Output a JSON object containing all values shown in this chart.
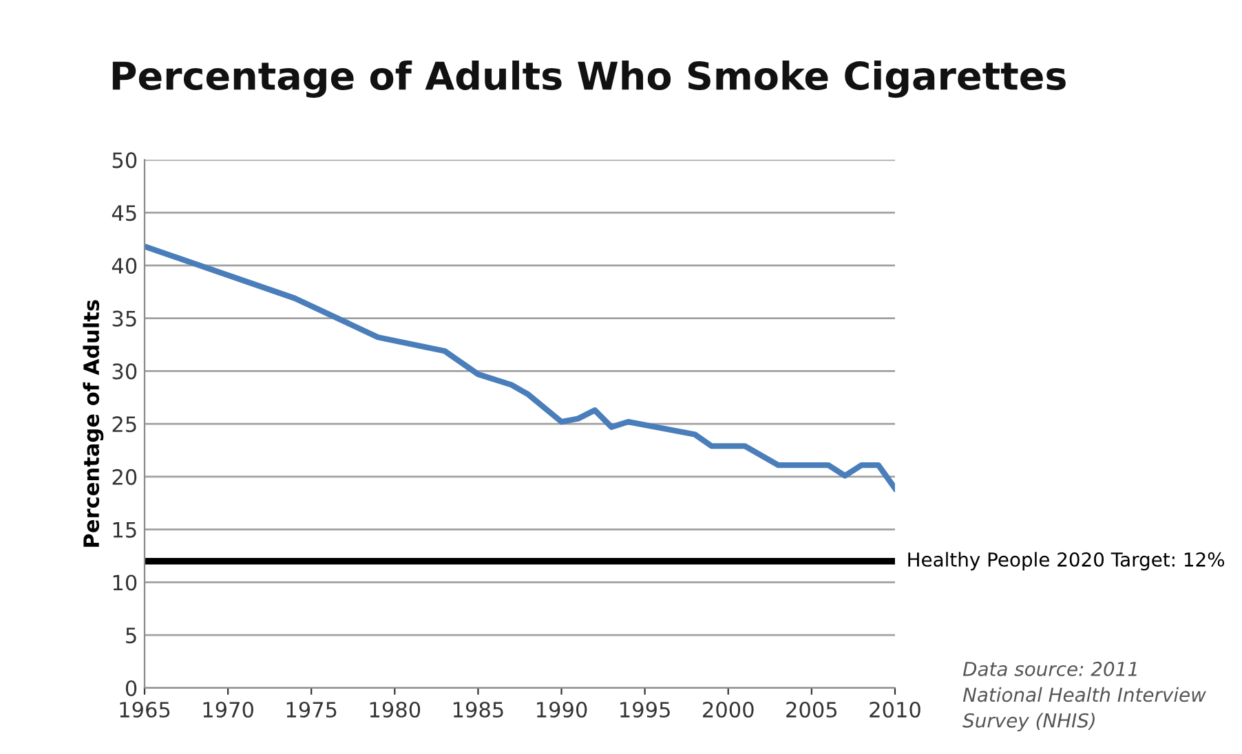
{
  "chart_data": {
    "type": "line",
    "title": "Percentage of Adults Who Smoke Cigarettes",
    "ylabel": "Percentage of Adults",
    "x": [
      1965,
      1974,
      1979,
      1983,
      1985,
      1987,
      1988,
      1990,
      1991,
      1992,
      1993,
      1994,
      1998,
      1999,
      2001,
      2003,
      2006,
      2007,
      2008,
      2009,
      2010
    ],
    "series": [
      {
        "color": "#4a7ebb",
        "values": [
          41.8,
          36.9,
          33.2,
          31.9,
          29.7,
          28.7,
          27.8,
          25.2,
          25.5,
          26.3,
          24.7,
          25.2,
          24.0,
          22.9,
          22.9,
          21.1,
          21.1,
          20.1,
          21.1,
          21.1,
          18.9
        ]
      }
    ],
    "xlim": [
      1965,
      2010
    ],
    "xticks": [
      1965,
      1970,
      1975,
      1980,
      1985,
      1990,
      1995,
      2000,
      2005,
      2010
    ],
    "ylim": [
      0,
      50
    ],
    "yticks": [
      0,
      5,
      10,
      15,
      20,
      25,
      30,
      35,
      40,
      45,
      50
    ],
    "grid": "y",
    "marker": "none",
    "line_style": "solid",
    "ref_lines": [
      {
        "axis": "y",
        "value": 12,
        "label": "Healthy People 2020 Target: 12%",
        "color": "#000000",
        "line_style": "solid"
      }
    ],
    "annotations": [
      "Data source: 2011\nNational Health Interview\nSurvey (NHIS)"
    ]
  }
}
